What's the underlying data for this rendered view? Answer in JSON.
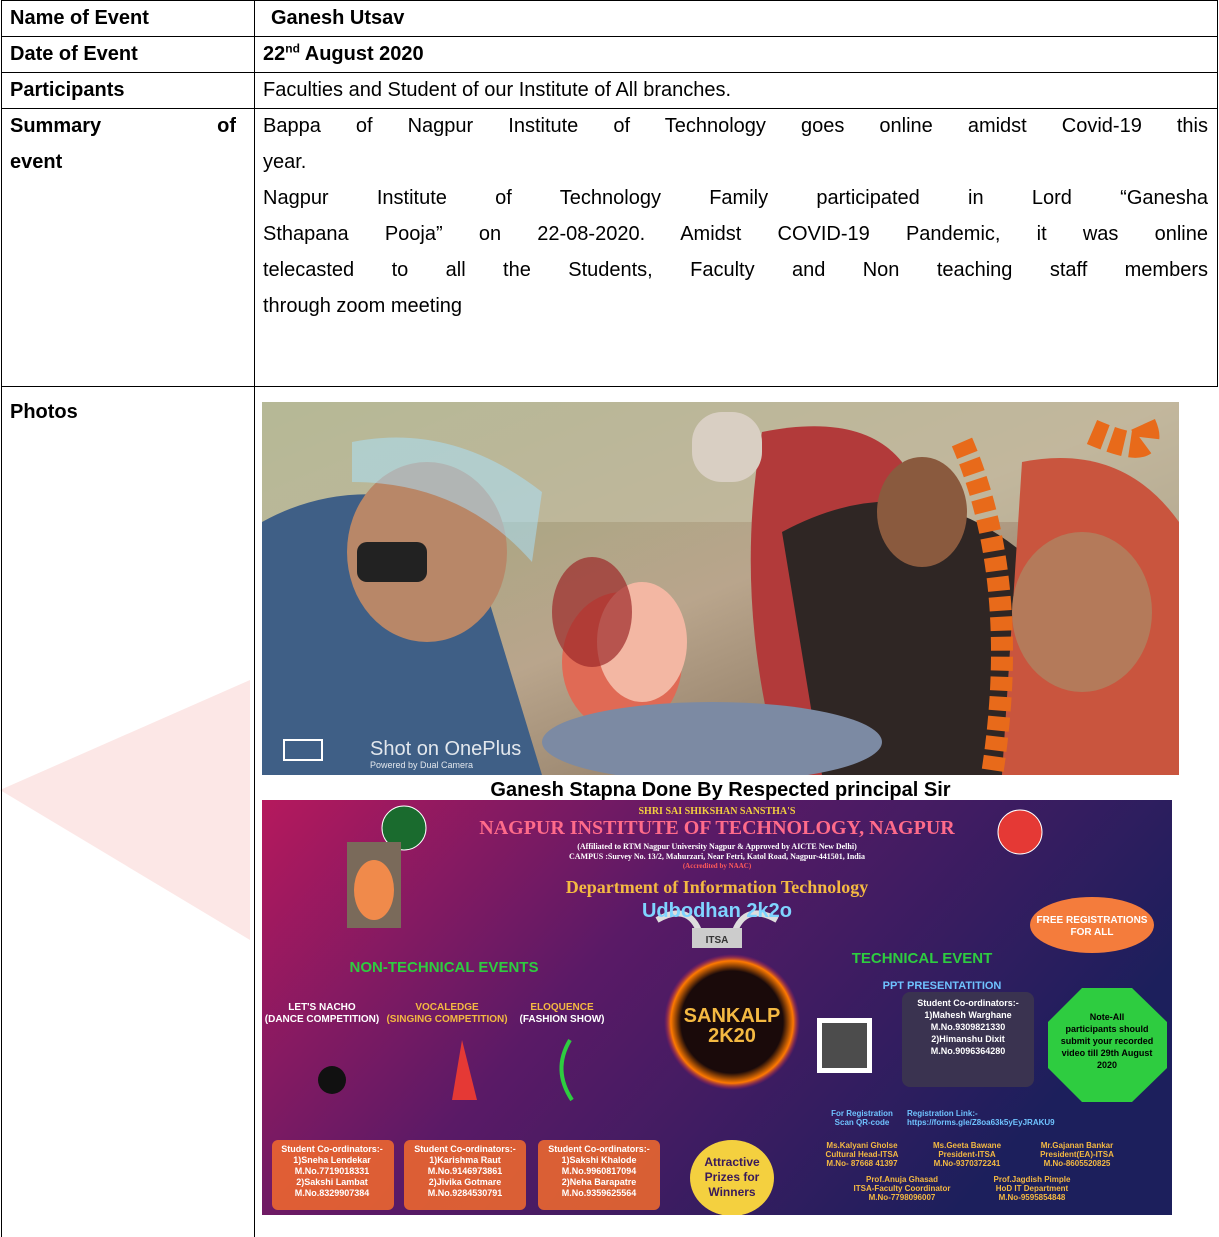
{
  "table": {
    "rows": [
      {
        "label": "Name of Event",
        "value": "Ganesh Utsav"
      },
      {
        "label": "Date of Event",
        "value": {
          "day": "22",
          "suffix": "nd",
          "rest": "August 2020"
        }
      },
      {
        "label": "Participants",
        "value": "Faculties and Student of our Institute of All branches."
      },
      {
        "label": [
          "Summary of",
          "event"
        ],
        "value": [
          [
            "Bappa of Nagpur Institute of Technology goes online amidst Covid-19 this",
            "year."
          ],
          [
            "Nagpur Institute of Technology Family participated in Lord “Ganesha",
            "Sthapana Pooja” on 22-08-2020. Amidst COVID-19 Pandemic, it was online",
            "telecasted to all the Students, Faculty and Non teaching staff members",
            "through zoom meeting"
          ]
        ]
      },
      {
        "label": "Photos",
        "photo": {
          "watermark": "Shot on OnePlus",
          "watermark_sub": "Powered by Dual Camera",
          "caption": "Ganesh Stapna Done By Respected principal Sir"
        }
      }
    ]
  },
  "poster": {
    "sanstha": "SHRI SAI SHIKSHAN SANSTHA'S",
    "institute": "NAGPUR INSTITUTE OF TECHNOLOGY, NAGPUR",
    "affiliation": "(Affiliated to RTM Nagpur University Nagpur & Approved by AICTE New Delhi)",
    "campus": "CAMPUS :Survey No. 13/2, Mahurzari, Near Fetri, Katol Road, Nagpur-441501, India",
    "accreditation": "(Accredited by NAAC)",
    "department": "Department of Information Technology",
    "fest": "Udbodhan 2k2o",
    "free_registration": [
      "FREE REGISTRATIONS",
      "FOR ALL"
    ],
    "association": "ITSA",
    "technical_heading": "TECHNICAL EVENT",
    "technical_event": "PPT PRESENTATITION",
    "non_technical_heading": "NON-TECHNICAL EVENTS",
    "events": [
      {
        "name": "LET'S NACHO",
        "type": "(DANCE COMPETITION)"
      },
      {
        "name": "VOCALEDGE",
        "type": "(SINGING COMPETITION)"
      },
      {
        "name": "ELOQUENCE",
        "type": "(FASHION SHOW)"
      }
    ],
    "sankalp": [
      "SANKALP",
      "2K20"
    ],
    "technical_coordinators": [
      "Student Co-ordinators:-",
      "1)Mahesh Warghane",
      "M.No.9309821330",
      "2)Himanshu Dixit",
      "M.No.9096364280"
    ],
    "note": [
      "Note-All",
      "participants should",
      "submit your recorded",
      "video till 29th August",
      "2020"
    ],
    "registration_scan": [
      "For Registration",
      "Scan QR-code"
    ],
    "registration_link": [
      "Registration Link:-",
      "https://forms.gle/Z8oa63k5yEyJRAKU9"
    ],
    "event_coordinators": [
      [
        "Student Co-ordinators:-",
        "1)Sneha Lendekar",
        "M.No.7719018331",
        "2)Sakshi Lambat",
        "M.No.8329907384"
      ],
      [
        "Student Co-ordinators:-",
        "1)Karishma Raut",
        "M.No.9146973861",
        "2)Jivika Gotmare",
        "M.No.9284530791"
      ],
      [
        "Student Co-ordinators:-",
        "1)Sakshi Khalode",
        "M.No.9960817094",
        "2)Neha Barapatre",
        "M.No.9359625564"
      ]
    ],
    "prizes": [
      "Attractive",
      "Prizes for",
      "Winners"
    ],
    "office_bearers": [
      [
        "Ms.Kalyani Gholse",
        "Cultural Head-ITSA",
        "M.No- 87668 41397"
      ],
      [
        "Ms.Geeta Bawane",
        "President-ITSA",
        "M.No-9370372241"
      ],
      [
        "Mr.Gajanan Bankar",
        "President(EA)-ITSA",
        "M.No-8605520825"
      ]
    ],
    "faculty": [
      [
        "Prof.Anuja Ghasad",
        "ITSA-Faculty Coordinator",
        "M.No-7798096007"
      ],
      [
        "Prof.Jagdish Pimple",
        "HoD IT Department",
        "M.No-9595854848"
      ]
    ]
  }
}
